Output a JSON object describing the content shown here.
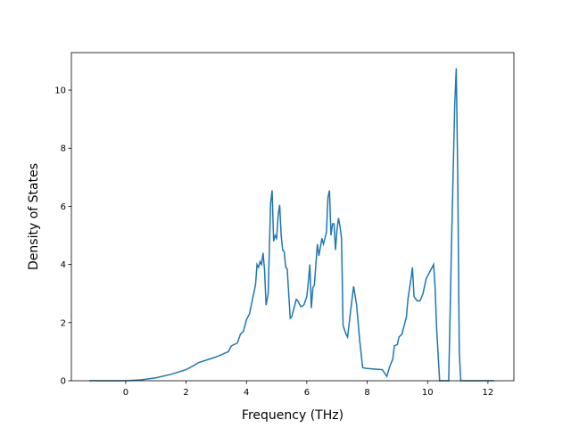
{
  "chart_data": {
    "type": "line",
    "x_label": "Frequency (THz)",
    "y_label": "Density of States",
    "x": [
      -1.2,
      -0.5,
      0,
      0.5,
      1,
      1.5,
      2,
      2.3,
      2.4,
      3,
      3.4,
      3.5,
      3.7,
      3.8,
      3.9,
      4.0,
      4.1,
      4.2,
      4.3,
      4.35,
      4.4,
      4.45,
      4.5,
      4.55,
      4.6,
      4.65,
      4.72,
      4.8,
      4.85,
      4.9,
      4.95,
      5.0,
      5.05,
      5.1,
      5.15,
      5.2,
      5.25,
      5.3,
      5.35,
      5.4,
      5.45,
      5.5,
      5.6,
      5.65,
      5.7,
      5.8,
      5.9,
      6.0,
      6.05,
      6.1,
      6.15,
      6.2,
      6.25,
      6.35,
      6.4,
      6.5,
      6.55,
      6.65,
      6.7,
      6.75,
      6.8,
      6.85,
      6.9,
      6.95,
      7.0,
      7.05,
      7.1,
      7.15,
      7.2,
      7.3,
      7.35,
      7.45,
      7.55,
      7.65,
      7.75,
      7.85,
      8.0,
      8.5,
      8.65,
      8.75,
      8.85,
      8.9,
      9.0,
      9.05,
      9.15,
      9.3,
      9.35,
      9.45,
      9.5,
      9.55,
      9.65,
      9.75,
      9.85,
      9.95,
      10.05,
      10.2,
      10.25,
      10.3,
      10.4,
      10.7,
      10.8,
      10.9,
      10.95,
      11.0,
      11.05,
      11.1,
      12.2
    ],
    "series": [
      {
        "color": "#1f77b4",
        "values": [
          0,
          0,
          0,
          0.03,
          0.1,
          0.22,
          0.38,
          0.55,
          0.62,
          0.82,
          1.0,
          1.2,
          1.3,
          1.6,
          1.7,
          2.1,
          2.3,
          2.8,
          3.3,
          4.0,
          3.9,
          4.1,
          4.0,
          4.4,
          3.8,
          2.6,
          3.0,
          6.1,
          6.55,
          4.8,
          5.0,
          4.9,
          5.7,
          6.05,
          5.0,
          4.5,
          4.45,
          3.9,
          3.85,
          3.0,
          2.15,
          2.2,
          2.6,
          2.8,
          2.75,
          2.55,
          2.6,
          2.9,
          3.4,
          4.0,
          2.5,
          3.2,
          3.3,
          4.7,
          4.3,
          4.9,
          4.7,
          5.1,
          6.3,
          6.55,
          5.0,
          5.4,
          5.4,
          4.5,
          5.2,
          5.6,
          5.3,
          4.9,
          1.9,
          1.6,
          1.5,
          2.4,
          3.25,
          2.6,
          1.4,
          0.45,
          0.42,
          0.38,
          0.15,
          0.5,
          0.75,
          1.2,
          1.25,
          1.5,
          1.6,
          2.2,
          2.8,
          3.5,
          3.9,
          2.9,
          2.75,
          2.75,
          3.0,
          3.5,
          3.7,
          4.0,
          3.2,
          1.8,
          0,
          0,
          5.0,
          9.5,
          10.75,
          7.0,
          1.0,
          0,
          0
        ]
      }
    ],
    "xlim": [
      -1.8,
      12.86
    ],
    "ylim": [
      0,
      11.29
    ],
    "xticks": [
      0,
      2,
      4,
      6,
      8,
      10,
      12
    ],
    "yticks": [
      0,
      2,
      4,
      6,
      8,
      10
    ]
  }
}
